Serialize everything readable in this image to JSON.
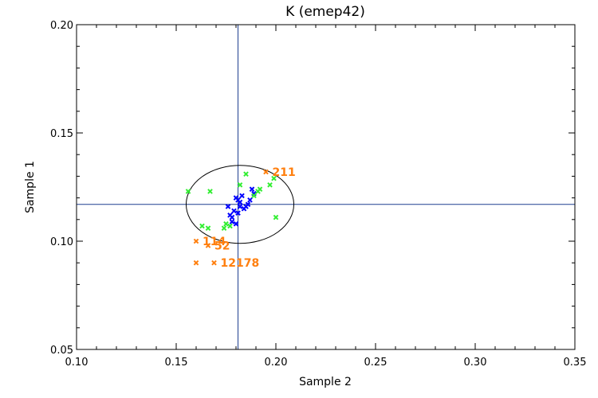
{
  "chart_data": {
    "type": "scatter",
    "title": "K (emep42)",
    "xlabel": "Sample 2",
    "ylabel": "Sample 1",
    "xlim": [
      0.1,
      0.35
    ],
    "ylim": [
      0.05,
      0.2
    ],
    "xticks": [
      "0.10",
      "0.15",
      "0.20",
      "0.25",
      "0.30",
      "0.35"
    ],
    "yticks": [
      "0.05",
      "0.10",
      "0.15",
      "0.20"
    ],
    "reference_lines": {
      "x": 0.181,
      "y": 0.117,
      "color": "#1f3f8f"
    },
    "ellipse": {
      "cx": 0.182,
      "cy": 0.117,
      "rx": 0.027,
      "ry": 0.018,
      "color": "#000000"
    },
    "series": [
      {
        "color": "#0000ff",
        "points": [
          [
            0.176,
            0.116
          ],
          [
            0.178,
            0.111
          ],
          [
            0.18,
            0.12
          ],
          [
            0.182,
            0.118
          ],
          [
            0.184,
            0.115
          ],
          [
            0.179,
            0.114
          ],
          [
            0.181,
            0.113
          ],
          [
            0.183,
            0.121
          ],
          [
            0.187,
            0.119
          ],
          [
            0.189,
            0.122
          ],
          [
            0.178,
            0.109
          ],
          [
            0.18,
            0.108
          ],
          [
            0.186,
            0.117
          ],
          [
            0.188,
            0.124
          ],
          [
            0.182,
            0.116
          ],
          [
            0.177,
            0.112
          ],
          [
            0.181,
            0.119
          ],
          [
            0.185,
            0.116
          ]
        ]
      },
      {
        "color": "#33ee33",
        "points": [
          [
            0.156,
            0.123
          ],
          [
            0.167,
            0.123
          ],
          [
            0.185,
            0.131
          ],
          [
            0.182,
            0.126
          ],
          [
            0.192,
            0.124
          ],
          [
            0.197,
            0.126
          ],
          [
            0.199,
            0.129
          ],
          [
            0.2,
            0.111
          ],
          [
            0.163,
            0.107
          ],
          [
            0.166,
            0.106
          ],
          [
            0.174,
            0.106
          ],
          [
            0.175,
            0.108
          ],
          [
            0.177,
            0.107
          ],
          [
            0.191,
            0.123
          ],
          [
            0.189,
            0.121
          ]
        ]
      },
      {
        "color": "#ff7f0e",
        "points": [
          {
            "x": 0.195,
            "y": 0.132,
            "label": "211"
          },
          {
            "x": 0.16,
            "y": 0.1,
            "label": "114"
          },
          {
            "x": 0.166,
            "y": 0.098,
            "label": "52"
          },
          {
            "x": 0.16,
            "y": 0.09,
            "label": ""
          },
          {
            "x": 0.169,
            "y": 0.09,
            "label": "12178"
          }
        ]
      }
    ]
  }
}
